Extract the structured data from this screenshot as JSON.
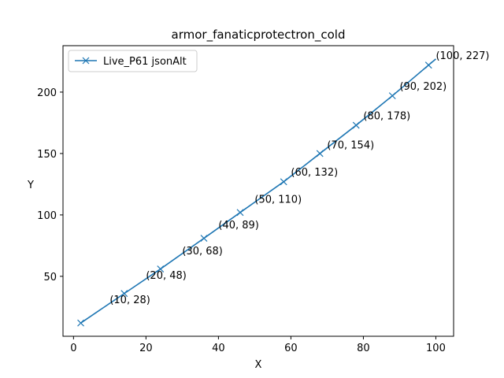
{
  "chart_data": {
    "type": "line",
    "title": "armor_fanaticprotectron_cold",
    "xlabel": "X",
    "ylabel": "Y",
    "xlim": [
      -2.9,
      104.9
    ],
    "ylim": [
      1.2,
      237.8
    ],
    "xticks": [
      0,
      20,
      40,
      60,
      80,
      100
    ],
    "yticks": [
      50,
      100,
      150,
      200
    ],
    "grid": false,
    "legend_position": "top-left",
    "series": [
      {
        "name": "Live_P61 jsonAlt",
        "color": "#1f77b4",
        "marker": "x",
        "x": [
          2,
          14,
          24,
          36,
          46,
          58,
          68,
          78,
          88,
          98,
          100
        ],
        "y": [
          12,
          36,
          56,
          81,
          102,
          127,
          150,
          173,
          197,
          222,
          227
        ]
      }
    ],
    "annotations": [
      {
        "text": "(10, 28)",
        "x": 10,
        "y": 28
      },
      {
        "text": "(20, 48)",
        "x": 20,
        "y": 48
      },
      {
        "text": "(30, 68)",
        "x": 30,
        "y": 68
      },
      {
        "text": "(40, 89)",
        "x": 40,
        "y": 89
      },
      {
        "text": "(50, 110)",
        "x": 50,
        "y": 110
      },
      {
        "text": "(60, 132)",
        "x": 60,
        "y": 132
      },
      {
        "text": "(70, 154)",
        "x": 70,
        "y": 154
      },
      {
        "text": "(80, 178)",
        "x": 80,
        "y": 178
      },
      {
        "text": "(90, 202)",
        "x": 90,
        "y": 202
      },
      {
        "text": "(100, 227)",
        "x": 100,
        "y": 227
      }
    ]
  }
}
